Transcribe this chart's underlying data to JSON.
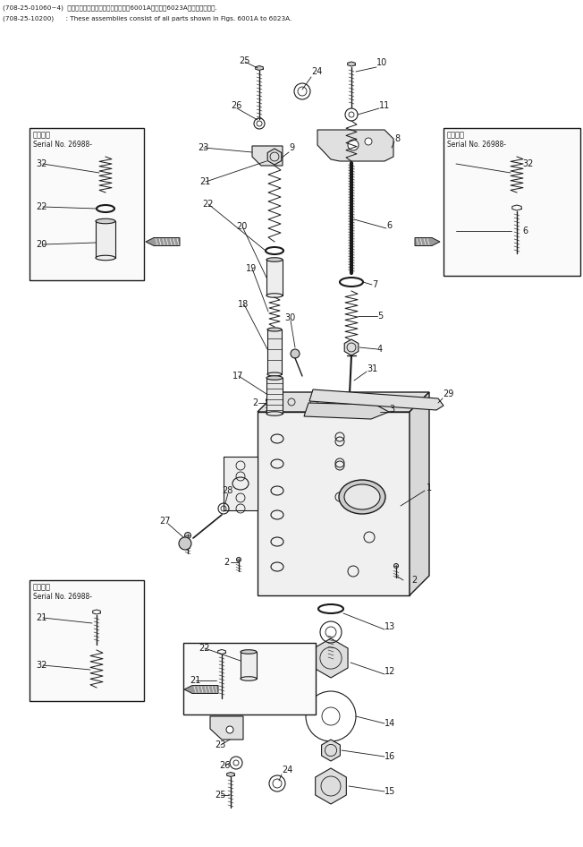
{
  "bg_color": "#ffffff",
  "lc": "#1a1a1a",
  "tc": "#1a1a1a",
  "title1": "(708-25-01060~4)  これらのアセンブリの構成部品は第6001A図から第6023A図まで含みます.",
  "title2": "(708-25-10200)      : These assemblies consist of all parts shown in Figs. 6001A to 6023A.",
  "inset_label": "適用号機",
  "serial_label": "Serial No. 26988-"
}
